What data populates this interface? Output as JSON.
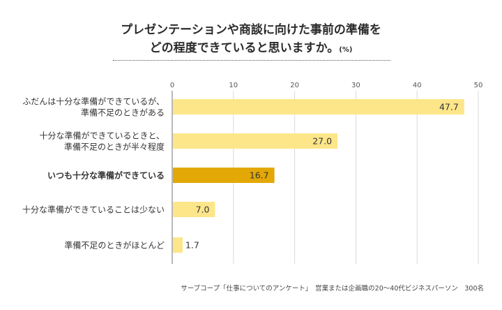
{
  "title": {
    "line1": "プレゼンテーションや商談に向けた事前の準備を",
    "line2": "どの程度できていると思いますか。",
    "unit": "(%)"
  },
  "colors": {
    "bar": "#fde68a",
    "bar_highlight": "#e3a806",
    "grid": "#d9d9d9",
    "axis": "#888888",
    "label_text": "#333333"
  },
  "chart_data": {
    "type": "bar",
    "orientation": "horizontal",
    "categories": [
      "ふだんは十分な準備ができているが、\n準備不足のときがある",
      "十分な準備ができているときと、\n準備不足のときが半々程度",
      "いつも十分な準備ができている",
      "十分な準備ができていることは少ない",
      "準備不足のときがほとんど"
    ],
    "values": [
      47.7,
      27.0,
      16.7,
      7.0,
      1.7
    ],
    "value_labels": [
      "47.7",
      "27.0",
      "16.7",
      "7.0",
      "1.7"
    ],
    "highlight_index": 2,
    "xlim": [
      0,
      50
    ],
    "xticks": [
      "0",
      "10",
      "20",
      "30",
      "40",
      "50"
    ],
    "grid": true,
    "xlabel": "",
    "ylabel": ""
  },
  "footer": "サーブコープ「仕事についてのアンケート」　営業または企画職の20〜40代ビジネスパーソン　300名"
}
